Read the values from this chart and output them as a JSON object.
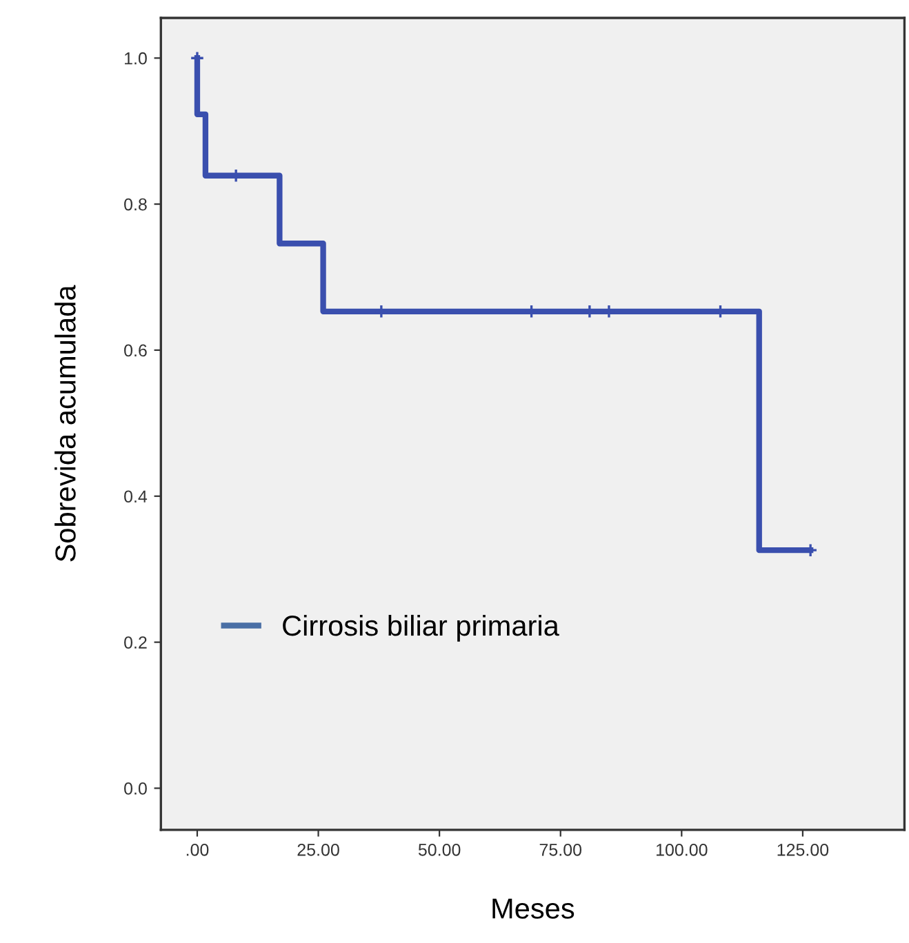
{
  "chart_data": {
    "type": "step",
    "xlabel": "Meses",
    "ylabel": "Sobrevida acumulada",
    "series": [
      {
        "name": "Cirrosis biliar primaria",
        "color": "#3a4fae",
        "marker": "none",
        "x": [
          0,
          0,
          1.7,
          17,
          26,
          116,
          126.6
        ],
        "values": [
          1.0,
          0.923,
          0.839,
          0.746,
          0.653,
          0.326,
          0.326
        ]
      },
      {
        "type": "scatter",
        "color": "#3a4fae",
        "marker": "cross",
        "x": [
          0,
          8,
          38,
          69,
          81,
          85,
          108,
          126.6
        ],
        "values": [
          1.0,
          0.839,
          0.653,
          0.653,
          0.653,
          0.653,
          0.653,
          0.326
        ]
      }
    ],
    "xlim": [
      -7.5,
      146
    ],
    "ylim": [
      -0.057,
      1.055
    ],
    "xticks": [
      {
        "value": 0,
        "label": ".00"
      },
      {
        "value": 25,
        "label": "25.00"
      },
      {
        "value": 50,
        "label": "50.00"
      },
      {
        "value": 75,
        "label": "75.00"
      },
      {
        "value": 100,
        "label": "100.00"
      },
      {
        "value": 125,
        "label": "125.00"
      }
    ],
    "yticks": [
      {
        "value": 0,
        "label": "0.0"
      },
      {
        "value": 0.2,
        "label": "0.2"
      },
      {
        "value": 0.4,
        "label": "0.4"
      },
      {
        "value": 0.6,
        "label": "0.6"
      },
      {
        "value": 0.8,
        "label": "0.8"
      },
      {
        "value": 1.0,
        "label": "1.0"
      }
    ],
    "grid": false,
    "legend": "lower left"
  }
}
